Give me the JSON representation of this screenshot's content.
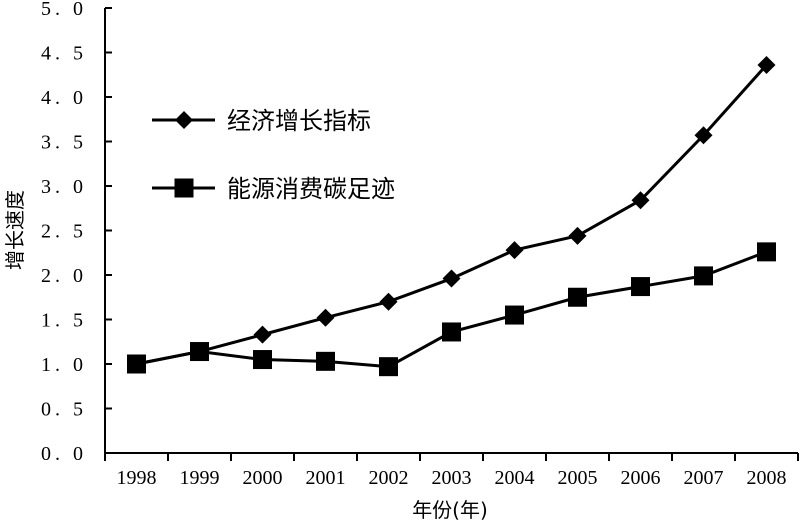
{
  "chart_data": {
    "type": "line",
    "title": "",
    "xlabel": "年份(年)",
    "ylabel": "增长速度",
    "categories": [
      "1998",
      "1999",
      "2000",
      "2001",
      "2002",
      "2003",
      "2004",
      "2005",
      "2006",
      "2007",
      "2008"
    ],
    "ylim": [
      0,
      5
    ],
    "yticks": [
      "0. 0",
      "0. 5",
      "1. 0",
      "1. 5",
      "2. 0",
      "2. 5",
      "3. 0",
      "3. 5",
      "4. 0",
      "4. 5",
      "5. 0"
    ],
    "grid": false,
    "legend_position": "upper-left",
    "series": [
      {
        "name": "经济增长指标",
        "marker": "diamond",
        "values": [
          1.0,
          1.14,
          1.33,
          1.52,
          1.7,
          1.96,
          2.28,
          2.44,
          2.84,
          3.57,
          4.36
        ]
      },
      {
        "name": "能源消费碳足迹",
        "marker": "square",
        "values": [
          1.0,
          1.14,
          1.05,
          1.03,
          0.97,
          1.36,
          1.55,
          1.75,
          1.87,
          1.99,
          2.26
        ]
      }
    ]
  }
}
